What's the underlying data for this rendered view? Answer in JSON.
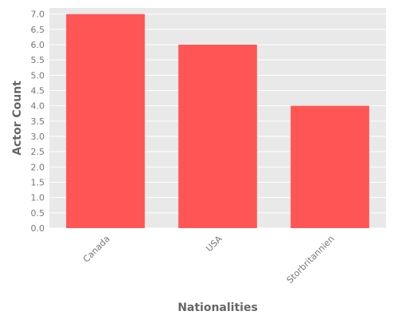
{
  "chart_data": {
    "type": "bar",
    "title": "",
    "xlabel": "Nationalities",
    "ylabel": "Actor Count",
    "categories": [
      "Canada",
      "USA",
      "Storbritannien"
    ],
    "values": [
      7,
      6,
      4
    ],
    "ylim": [
      0,
      7.2
    ],
    "yticks": [
      "0.0",
      "0.5",
      "1.0",
      "1.5",
      "2.0",
      "2.5",
      "3.0",
      "3.5",
      "4.0",
      "4.5",
      "5.0",
      "5.5",
      "6.0",
      "6.5",
      "7.0"
    ],
    "grid": true,
    "bar_color": "#ff5555",
    "background_color": "#e9e9e9",
    "grid_color": "#ffffff"
  }
}
